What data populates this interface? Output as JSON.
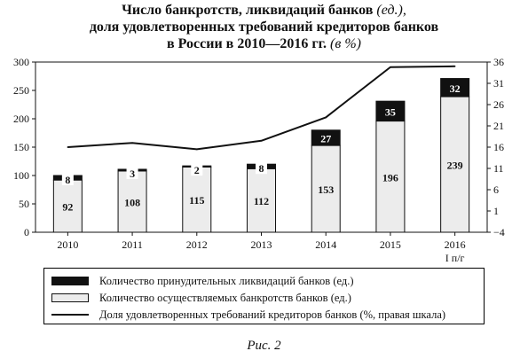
{
  "title": {
    "line1": "Число банкротств, ликвидаций банков",
    "line1_unit": "(ед.),",
    "line2": "доля удовлетворенных требований кредиторов банков",
    "line3": "в России в 2010—2016 гг.",
    "line3_unit": "(в %)"
  },
  "chart_data": {
    "type": "bar",
    "categories": [
      "2010",
      "2011",
      "2012",
      "2013",
      "2014",
      "2015",
      "2016"
    ],
    "category_sublabels": [
      "",
      "",
      "",
      "",
      "",
      "",
      "I п/г"
    ],
    "series": [
      {
        "name": "Количество осуществляемых банкротств банков (ед.)",
        "kind": "bar",
        "stack": 0,
        "color": "#ececec",
        "values": [
          92,
          108,
          115,
          112,
          153,
          196,
          239
        ]
      },
      {
        "name": "Количество принудительных ликвидаций банков (ед.)",
        "kind": "bar",
        "stack": 1,
        "color": "#111111",
        "values": [
          8,
          3,
          2,
          8,
          27,
          35,
          32
        ]
      },
      {
        "name": "Доля удовлетворенных требований кредиторов банков (%, правая шкала)",
        "kind": "line",
        "axis": "right",
        "color": "#111111",
        "values": [
          16,
          17,
          15.5,
          17.5,
          23,
          34.8,
          35
        ]
      }
    ],
    "y_left": {
      "lim": [
        0,
        300
      ],
      "ticks": [
        "0",
        "50",
        "100",
        "150",
        "200",
        "250",
        "300"
      ]
    },
    "y_right": {
      "lim": [
        -4,
        36
      ],
      "ticks": [
        "−4",
        "1",
        "6",
        "11",
        "16",
        "21",
        "26",
        "31",
        "36"
      ]
    },
    "grid": false,
    "legend_position": "bottom"
  },
  "legend": [
    {
      "swatch": "black",
      "label": "Количество принудительных ликвидаций банков (ед.)"
    },
    {
      "swatch": "light",
      "label": "Количество осуществляемых банкротств банков (ед.)"
    },
    {
      "swatch": "line",
      "label": "Доля удовлетворенных требований кредиторов банков (%, правая шкала)"
    }
  ],
  "caption": "Рис. 2"
}
